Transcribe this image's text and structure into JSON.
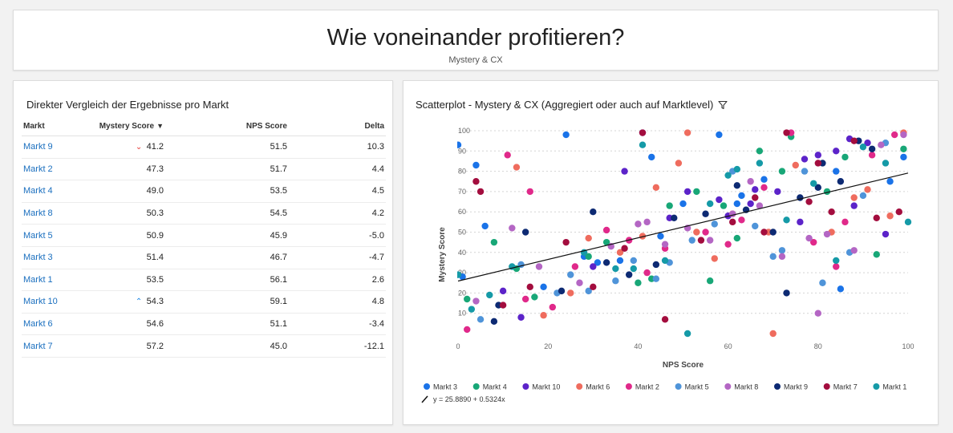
{
  "header": {
    "title": "Wie voneinander profitieren?",
    "subtitle": "Mystery & CX"
  },
  "table": {
    "title": "Direkter Vergleich der Ergebnisse pro Markt",
    "columns": {
      "market": "Markt",
      "mystery": "Mystery Score",
      "nps": "NPS Score",
      "delta": "Delta"
    },
    "sort_indicator": "▼",
    "rows": [
      {
        "market": "Markt 9",
        "mystery": "41.2",
        "nps": "51.5",
        "delta": "10.3",
        "indicator": "down"
      },
      {
        "market": "Markt 2",
        "mystery": "47.3",
        "nps": "51.7",
        "delta": "4.4",
        "indicator": ""
      },
      {
        "market": "Markt 4",
        "mystery": "49.0",
        "nps": "53.5",
        "delta": "4.5",
        "indicator": ""
      },
      {
        "market": "Markt 8",
        "mystery": "50.3",
        "nps": "54.5",
        "delta": "4.2",
        "indicator": ""
      },
      {
        "market": "Markt 5",
        "mystery": "50.9",
        "nps": "45.9",
        "delta": "-5.0",
        "indicator": ""
      },
      {
        "market": "Markt 3",
        "mystery": "51.4",
        "nps": "46.7",
        "delta": "-4.7",
        "indicator": ""
      },
      {
        "market": "Markt 1",
        "mystery": "53.5",
        "nps": "56.1",
        "delta": "2.6",
        "indicator": ""
      },
      {
        "market": "Markt 10",
        "mystery": "54.3",
        "nps": "59.1",
        "delta": "4.8",
        "indicator": "up"
      },
      {
        "market": "Markt 6",
        "mystery": "54.6",
        "nps": "51.1",
        "delta": "-3.4",
        "indicator": ""
      },
      {
        "market": "Markt 7",
        "mystery": "57.2",
        "nps": "45.0",
        "delta": "-12.1",
        "indicator": ""
      }
    ]
  },
  "chart": {
    "title": "Scatterplot - Mystery & CX (Aggregiert oder auch auf Marktlevel)",
    "filter_icon": "filter-icon"
  },
  "chart_data": {
    "type": "scatter",
    "title": "Scatterplot - Mystery & CX (Aggregiert oder auch auf Marktlevel)",
    "xlabel": "NPS Score",
    "ylabel": "Mystery Score",
    "xlim": [
      0,
      100
    ],
    "ylim": [
      0,
      100
    ],
    "x_ticks": [
      0,
      20,
      40,
      60,
      80,
      100
    ],
    "y_ticks": [
      10,
      20,
      30,
      40,
      50,
      60,
      70,
      80,
      90,
      100
    ],
    "grid": "horizontal dotted",
    "legend_position": "bottom",
    "trendline": {
      "label": "y = 25.8890 + 0.5324x",
      "intercept": 25.889,
      "slope": 0.5324
    },
    "series": [
      {
        "name": "Markt 3",
        "color": "#1a73e8",
        "points": [
          [
            0,
            93
          ],
          [
            24,
            98
          ],
          [
            43,
            87
          ],
          [
            58,
            98
          ],
          [
            4,
            83
          ],
          [
            1,
            28
          ],
          [
            6,
            53
          ],
          [
            50,
            64
          ],
          [
            63,
            68
          ],
          [
            68,
            76
          ],
          [
            84,
            80
          ],
          [
            96,
            75
          ],
          [
            99,
            87
          ],
          [
            45,
            48
          ],
          [
            31,
            35
          ],
          [
            36,
            36
          ],
          [
            19,
            23
          ],
          [
            28,
            38
          ],
          [
            62,
            64
          ],
          [
            85,
            22
          ]
        ]
      },
      {
        "name": "Markt 4",
        "color": "#18a777",
        "points": [
          [
            8,
            45
          ],
          [
            2,
            17
          ],
          [
            13,
            32
          ],
          [
            17,
            18
          ],
          [
            29,
            38
          ],
          [
            40,
            25
          ],
          [
            47,
            63
          ],
          [
            53,
            70
          ],
          [
            59,
            63
          ],
          [
            62,
            47
          ],
          [
            67,
            90
          ],
          [
            72,
            80
          ],
          [
            82,
            70
          ],
          [
            86,
            87
          ],
          [
            93,
            39
          ],
          [
            99,
            91
          ],
          [
            56,
            26
          ],
          [
            43,
            27
          ],
          [
            33,
            45
          ],
          [
            74,
            97
          ]
        ]
      },
      {
        "name": "Markt 10",
        "color": "#5c23c9",
        "points": [
          [
            37,
            80
          ],
          [
            47,
            57
          ],
          [
            51,
            70
          ],
          [
            58,
            66
          ],
          [
            65,
            64
          ],
          [
            71,
            70
          ],
          [
            77,
            86
          ],
          [
            80,
            88
          ],
          [
            84,
            90
          ],
          [
            88,
            63
          ],
          [
            91,
            94
          ],
          [
            95,
            49
          ],
          [
            60,
            58
          ],
          [
            66,
            71
          ],
          [
            87,
            96
          ],
          [
            10,
            21
          ],
          [
            14,
            8
          ],
          [
            30,
            33
          ],
          [
            41,
            99
          ],
          [
            76,
            55
          ]
        ]
      },
      {
        "name": "Markt 6",
        "color": "#ef6c5e",
        "points": [
          [
            13,
            82
          ],
          [
            19,
            9
          ],
          [
            25,
            20
          ],
          [
            36,
            40
          ],
          [
            41,
            48
          ],
          [
            49,
            84
          ],
          [
            53,
            50
          ],
          [
            61,
            59
          ],
          [
            69,
            50
          ],
          [
            75,
            83
          ],
          [
            83,
            50
          ],
          [
            91,
            71
          ],
          [
            96,
            58
          ],
          [
            99,
            99
          ],
          [
            51,
            99
          ],
          [
            70,
            0
          ],
          [
            29,
            47
          ],
          [
            44,
            72
          ],
          [
            57,
            37
          ],
          [
            88,
            67
          ]
        ]
      },
      {
        "name": "Markt 2",
        "color": "#e0298a",
        "points": [
          [
            2,
            2
          ],
          [
            11,
            88
          ],
          [
            16,
            70
          ],
          [
            21,
            13
          ],
          [
            26,
            33
          ],
          [
            33,
            51
          ],
          [
            42,
            30
          ],
          [
            46,
            42
          ],
          [
            55,
            50
          ],
          [
            63,
            56
          ],
          [
            68,
            72
          ],
          [
            74,
            99
          ],
          [
            79,
            45
          ],
          [
            84,
            33
          ],
          [
            92,
            88
          ],
          [
            97,
            98
          ],
          [
            15,
            17
          ],
          [
            38,
            46
          ],
          [
            86,
            55
          ],
          [
            60,
            44
          ]
        ]
      },
      {
        "name": "Markt 5",
        "color": "#4f94d9",
        "points": [
          [
            5,
            7
          ],
          [
            14,
            34
          ],
          [
            22,
            20
          ],
          [
            29,
            21
          ],
          [
            35,
            26
          ],
          [
            39,
            36
          ],
          [
            47,
            35
          ],
          [
            52,
            46
          ],
          [
            57,
            54
          ],
          [
            61,
            80
          ],
          [
            66,
            53
          ],
          [
            72,
            41
          ],
          [
            77,
            80
          ],
          [
            81,
            25
          ],
          [
            90,
            68
          ],
          [
            95,
            94
          ],
          [
            70,
            38
          ],
          [
            25,
            29
          ],
          [
            44,
            27
          ],
          [
            87,
            40
          ]
        ]
      },
      {
        "name": "Markt 8",
        "color": "#b466c4",
        "points": [
          [
            4,
            16
          ],
          [
            12,
            52
          ],
          [
            18,
            33
          ],
          [
            27,
            25
          ],
          [
            34,
            43
          ],
          [
            40,
            54
          ],
          [
            46,
            44
          ],
          [
            51,
            52
          ],
          [
            56,
            46
          ],
          [
            61,
            59
          ],
          [
            67,
            63
          ],
          [
            72,
            38
          ],
          [
            78,
            47
          ],
          [
            82,
            49
          ],
          [
            88,
            41
          ],
          [
            94,
            93
          ],
          [
            99,
            98
          ],
          [
            80,
            10
          ],
          [
            65,
            75
          ],
          [
            42,
            55
          ]
        ]
      },
      {
        "name": "Markt 9",
        "color": "#0d2a73",
        "points": [
          [
            8,
            6
          ],
          [
            9,
            14
          ],
          [
            15,
            50
          ],
          [
            23,
            21
          ],
          [
            30,
            60
          ],
          [
            33,
            35
          ],
          [
            38,
            29
          ],
          [
            44,
            34
          ],
          [
            48,
            57
          ],
          [
            55,
            59
          ],
          [
            64,
            61
          ],
          [
            73,
            20
          ],
          [
            80,
            72
          ],
          [
            85,
            75
          ],
          [
            89,
            95
          ],
          [
            92,
            91
          ],
          [
            62,
            73
          ],
          [
            70,
            50
          ],
          [
            76,
            67
          ],
          [
            81,
            84
          ]
        ]
      },
      {
        "name": "Markt 7",
        "color": "#a30d3e",
        "points": [
          [
            5,
            70
          ],
          [
            10,
            14
          ],
          [
            16,
            23
          ],
          [
            24,
            45
          ],
          [
            30,
            23
          ],
          [
            37,
            42
          ],
          [
            41,
            99
          ],
          [
            46,
            7
          ],
          [
            54,
            46
          ],
          [
            61,
            55
          ],
          [
            68,
            50
          ],
          [
            73,
            99
          ],
          [
            78,
            65
          ],
          [
            83,
            60
          ],
          [
            88,
            95
          ],
          [
            93,
            57
          ],
          [
            98,
            60
          ],
          [
            66,
            67
          ],
          [
            4,
            75
          ],
          [
            80,
            84
          ]
        ]
      },
      {
        "name": "Markt 1",
        "color": "#159aa7",
        "points": [
          [
            0,
            29
          ],
          [
            3,
            12
          ],
          [
            7,
            19
          ],
          [
            12,
            33
          ],
          [
            28,
            40
          ],
          [
            35,
            32
          ],
          [
            39,
            32
          ],
          [
            46,
            36
          ],
          [
            51,
            0
          ],
          [
            56,
            64
          ],
          [
            62,
            81
          ],
          [
            67,
            84
          ],
          [
            73,
            56
          ],
          [
            79,
            74
          ],
          [
            84,
            36
          ],
          [
            90,
            92
          ],
          [
            95,
            84
          ],
          [
            100,
            55
          ],
          [
            41,
            93
          ],
          [
            60,
            78
          ]
        ]
      }
    ]
  }
}
